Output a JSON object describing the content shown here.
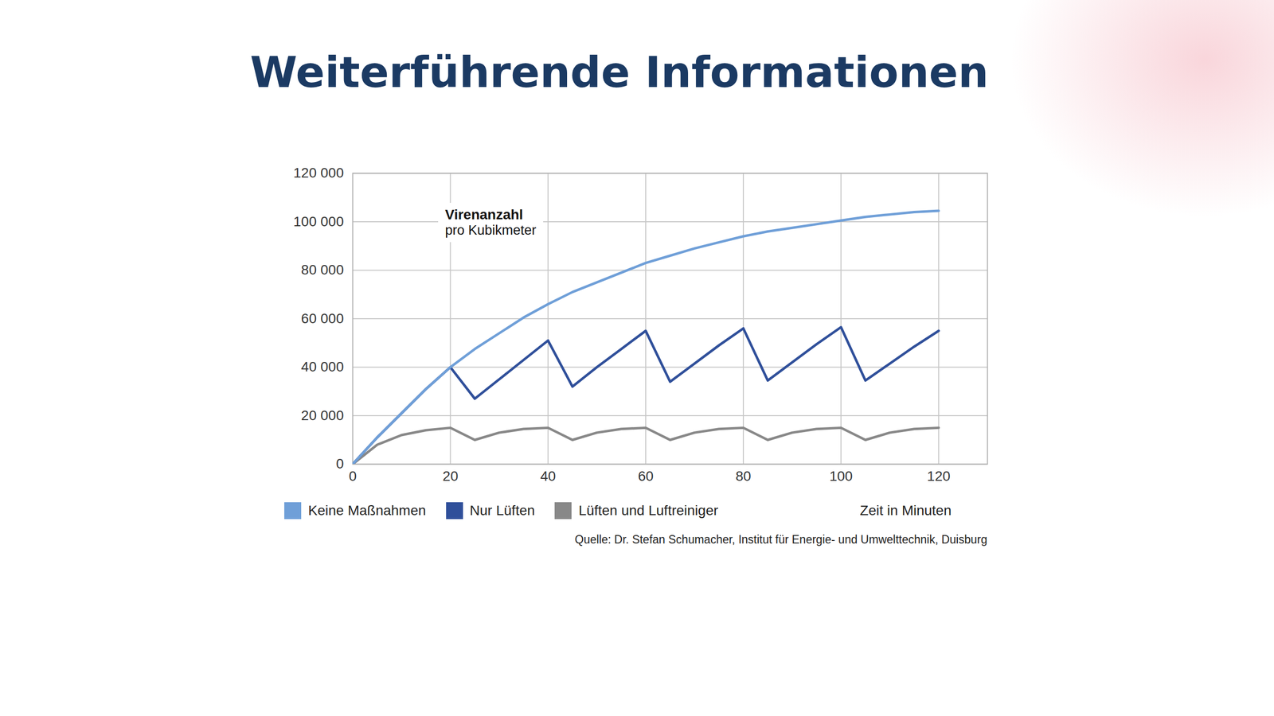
{
  "chart_data": {
    "type": "line",
    "title": "Weiterführende Informationen",
    "y_label": "Virenanzahl",
    "y_label_sub": "pro Kubikmeter",
    "x_label": "Zeit in Minuten",
    "source": "Quelle: Dr. Stefan Schumacher, Institut für Energie- und Umwelttechnik, Duisburg",
    "x": [
      0,
      5,
      10,
      15,
      20,
      25,
      30,
      35,
      40,
      45,
      50,
      55,
      60,
      65,
      70,
      75,
      80,
      85,
      90,
      95,
      100,
      105,
      110,
      115,
      120
    ],
    "series": [
      {
        "name": "Keine Maßnahmen",
        "color": "#6f9fd8",
        "values": [
          0,
          11000,
          21000,
          31000,
          40000,
          47500,
          54000,
          60500,
          66000,
          71000,
          75000,
          79000,
          83000,
          86000,
          89000,
          91500,
          94000,
          96000,
          97500,
          99000,
          100500,
          102000,
          103000,
          104000,
          104500
        ]
      },
      {
        "name": "Nur Lüften",
        "color": "#2f4f9a",
        "values": [
          0,
          11000,
          21000,
          31000,
          40000,
          27000,
          35000,
          43000,
          51000,
          32000,
          40000,
          47500,
          55000,
          34000,
          41500,
          49000,
          56000,
          34500,
          42000,
          49500,
          56500,
          34500,
          41500,
          48500,
          55000
        ]
      },
      {
        "name": "Lüften und Luftreiniger",
        "color": "#888888",
        "values": [
          0,
          8000,
          12000,
          14000,
          15000,
          10000,
          13000,
          14500,
          15000,
          10000,
          13000,
          14500,
          15000,
          10000,
          13000,
          14500,
          15000,
          10000,
          13000,
          14500,
          15000,
          10000,
          13000,
          14500,
          15000
        ]
      }
    ],
    "xlim": [
      0,
      130
    ],
    "xticks": [
      0,
      20,
      40,
      60,
      80,
      100,
      120
    ],
    "ylim": [
      0,
      120000
    ],
    "yticks": [
      0,
      {
        "value": 20000,
        "label": "20 000"
      },
      {
        "value": 40000,
        "label": "40 000"
      },
      {
        "value": 60000,
        "label": "60 000"
      },
      {
        "value": 80000,
        "label": "80 000"
      },
      {
        "value": 100000,
        "label": "100 000"
      },
      {
        "value": 120000,
        "label": "120 000"
      }
    ],
    "grid": true,
    "legend": "bottom"
  }
}
